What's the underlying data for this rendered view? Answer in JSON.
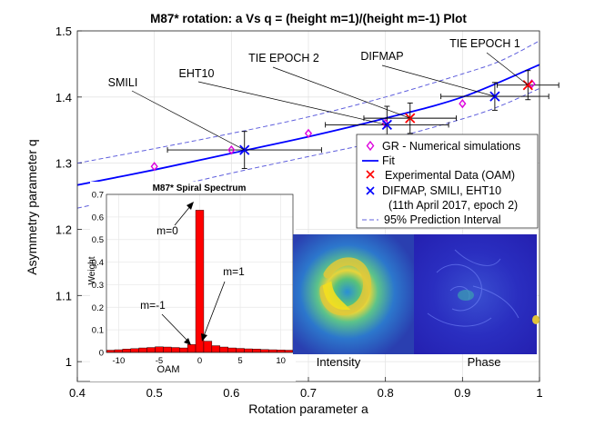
{
  "chart_data": [
    {
      "type": "scatter",
      "title": "M87* rotation: a Vs q = (height m=1)/(height m=-1) Plot",
      "xlabel": "Rotation parameter a",
      "ylabel": "Asymmetry parameter q",
      "xlim": [
        0.4,
        1.0
      ],
      "ylim": [
        0.97,
        1.5
      ],
      "xticks": [
        "0.4",
        "0.5",
        "0.6",
        "0.7",
        "0.8",
        "0.9",
        "1"
      ],
      "yticks": [
        "1",
        "1.1",
        "1.2",
        "1.3",
        "1.4",
        "1.5"
      ],
      "grid": true,
      "gr_simulations": {
        "a": [
          0.5,
          0.6,
          0.7,
          0.8,
          0.9,
          0.99
        ],
        "q": [
          1.295,
          1.32,
          1.345,
          1.36,
          1.39,
          1.42
        ]
      },
      "fit": {
        "a": [
          0.4,
          0.5,
          0.6,
          0.7,
          0.8,
          0.9,
          1.0
        ],
        "q": [
          1.267,
          1.29,
          1.315,
          1.34,
          1.368,
          1.4,
          1.449
        ]
      },
      "pred_upper": {
        "a": [
          0.4,
          0.5,
          0.6,
          0.7,
          0.8,
          0.9,
          0.95,
          1.0
        ],
        "q": [
          1.3,
          1.322,
          1.345,
          1.37,
          1.4,
          1.435,
          1.455,
          1.485
        ]
      },
      "pred_lower": {
        "a": [
          0.4,
          0.5,
          0.6,
          0.7,
          0.8,
          0.9,
          0.95,
          1.0
        ],
        "q": [
          1.232,
          1.258,
          1.285,
          1.31,
          1.335,
          1.367,
          1.387,
          1.413
        ]
      },
      "experimental_oam": [
        {
          "label": "TIE EPOCH 1",
          "a": 0.985,
          "q": 1.418,
          "a_err": 0.04,
          "q_err": 0.022
        },
        {
          "label": "TIE  EPOCH 2",
          "a": 0.832,
          "q": 1.368,
          "a_err": 0.06,
          "q_err": 0.023
        }
      ],
      "blue_cross": [
        {
          "label": "DIFMAP",
          "a": 0.942,
          "q": 1.401,
          "a_err": 0.07,
          "q_err": 0.021
        },
        {
          "label": "EHT10",
          "a": 0.802,
          "q": 1.358,
          "a_err": 0.08,
          "q_err": 0.028
        },
        {
          "label": "SMILI",
          "a": 0.617,
          "q": 1.32,
          "a_err": 0.1,
          "q_err": 0.028
        }
      ],
      "legend": {
        "placement": "right",
        "entries": [
          "GR - Numerical simulations",
          "Fit",
          "Experimental Data (OAM)",
          "DIFMAP, SMILI, EHT10",
          "(11th April 2017, epoch 2)",
          "95% Prediction Interval"
        ]
      },
      "colors": {
        "fit": "#0000ff",
        "gr": "#dd00dd",
        "oam": "#ff0000",
        "cross": "#0000ff",
        "errorbar": "#000000",
        "pred": "#5f5fdd"
      }
    },
    {
      "type": "bar",
      "title": "M87* Spiral Spectrum",
      "xlabel": "OAM",
      "ylabel": "Weight",
      "xlim": [
        -11.5,
        11.5
      ],
      "ylim": [
        0,
        0.7
      ],
      "xticks": [
        "-10",
        "-5",
        "0",
        "5",
        "10"
      ],
      "yticks": [
        "0",
        "0.1",
        "0.2",
        "0.3",
        "0.4",
        "0.5",
        "0.6",
        "0.7"
      ],
      "categories": [
        -11,
        -10,
        -9,
        -8,
        -7,
        -6,
        -5,
        -4,
        -3,
        -2,
        -1,
        0,
        1,
        2,
        3,
        4,
        5,
        6,
        7,
        8,
        9,
        10,
        11
      ],
      "values": [
        0.01,
        0.012,
        0.015,
        0.017,
        0.02,
        0.022,
        0.025,
        0.024,
        0.022,
        0.02,
        0.035,
        0.63,
        0.05,
        0.03,
        0.024,
        0.02,
        0.018,
        0.016,
        0.015,
        0.013,
        0.012,
        0.011,
        0.01
      ],
      "annotations": [
        "m=0",
        "m=1",
        "m=-1"
      ],
      "color": "#ff0000"
    }
  ],
  "images": {
    "intensity_label": "Intensity",
    "phase_label": "Phase"
  }
}
